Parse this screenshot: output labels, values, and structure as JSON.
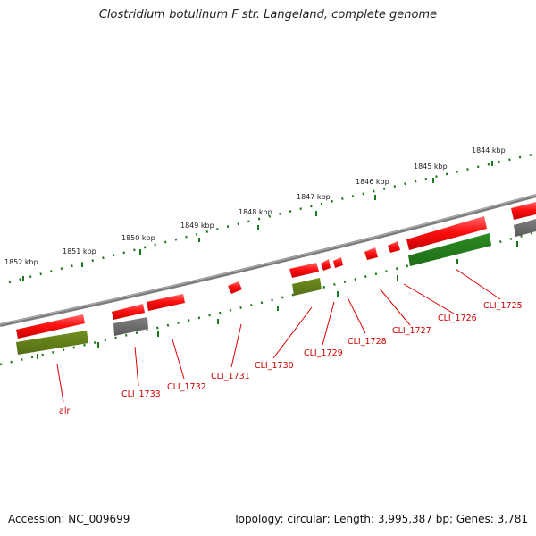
{
  "title": "Clostridium botulinum F str. Langeland, complete genome",
  "footer": {
    "accession": "Accession: NC_009699",
    "summary": "Topology: circular; Length: 3,995,387 bp; Genes: 3,781"
  },
  "colors": {
    "backbone": "#8a8a8a",
    "forward_gene": "#ff1010",
    "reverse_gene_dark_green": "#2b8a22",
    "reverse_gene_olive": "#6f8f1f",
    "gray_feature": "#6a6a6a",
    "tick": "#1a7a1a",
    "label": "#cc0000"
  },
  "kbp_ticks": [
    "1852 kbp",
    "1851 kbp",
    "1850 kbp",
    "1849 kbp",
    "1848 kbp",
    "1847 kbp",
    "1846 kbp",
    "1845 kbp",
    "1844 kbp"
  ],
  "genes": [
    "alr",
    "CLI_1733",
    "CLI_1732",
    "CLI_1731",
    "CLI_1730",
    "CLI_1729",
    "CLI_1728",
    "CLI_1727",
    "CLI_1726",
    "CLI_1725"
  ]
}
